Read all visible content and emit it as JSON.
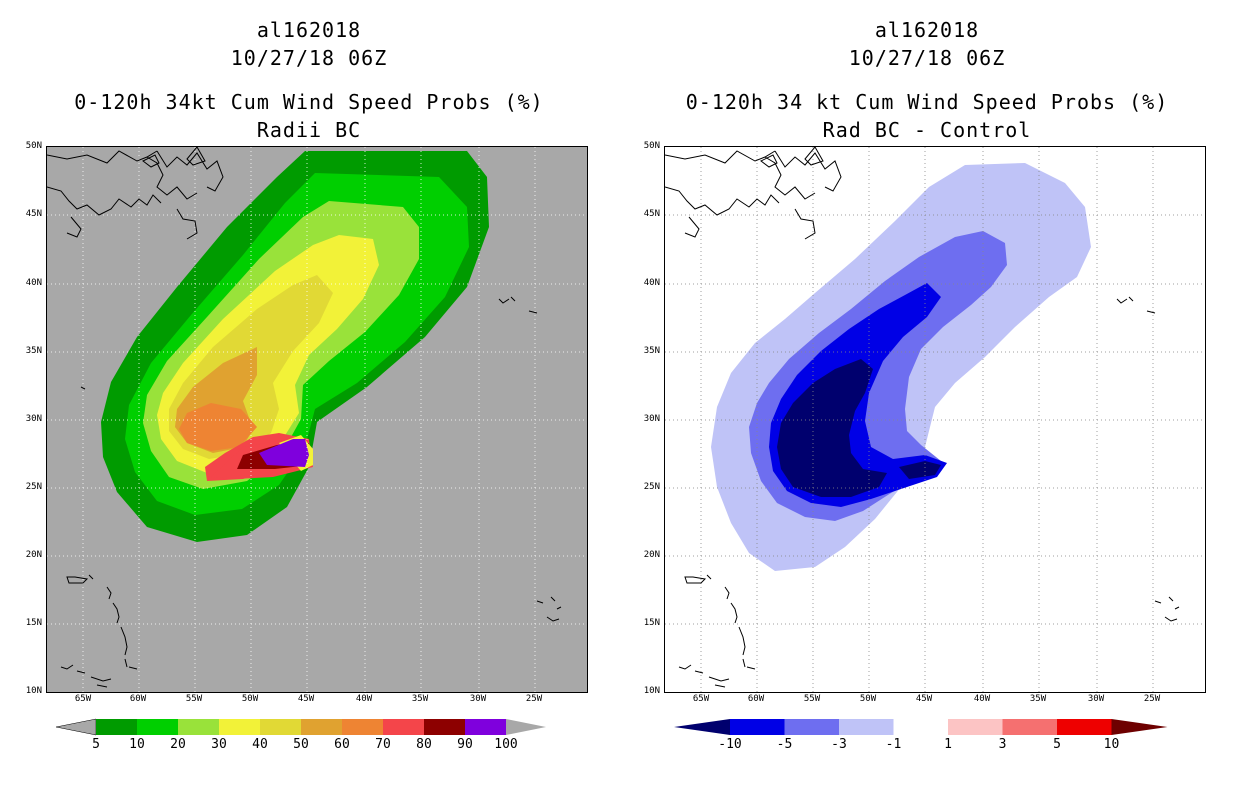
{
  "left": {
    "title1": "al162018",
    "title2": "10/27/18 06Z",
    "title3": "0-120h 34kt Cum Wind Speed Probs (%)",
    "title4": "Radii BC",
    "colorbar": {
      "labels": [
        "5",
        "10",
        "20",
        "30",
        "40",
        "50",
        "60",
        "70",
        "80",
        "90",
        "100"
      ],
      "colors": [
        "#009b00",
        "#00cf00",
        "#99e23a",
        "#f2f238",
        "#e1d935",
        "#e0a230",
        "#ee8433",
        "#f4454a",
        "#8d0000",
        "#7f00dd"
      ],
      "end_color": "#a8a8a8"
    }
  },
  "right": {
    "title1": "al162018",
    "title2": "10/27/18 06Z",
    "title3": "0-120h 34 kt Cum Wind Speed Probs (%)",
    "title4": "Rad BC - Control",
    "colorbar": {
      "labels": [
        "-10",
        "-5",
        "-3",
        "-1",
        "1",
        "3",
        "5",
        "10"
      ],
      "colors": [
        "#0000e6",
        "#6e6ef0",
        "#bfc3f7",
        "#ffffff",
        "#fcc4c4",
        "#f57070",
        "#ee0000"
      ],
      "low_end": "#00006e",
      "high_end": "#6e0000"
    }
  },
  "axes": {
    "lat_labels": [
      "50N",
      "45N",
      "40N",
      "35N",
      "30N",
      "25N",
      "20N",
      "15N",
      "10N"
    ],
    "lon_labels": [
      "65W",
      "60W",
      "55W",
      "50W",
      "45W",
      "40W",
      "35W",
      "30W",
      "25W"
    ]
  }
}
